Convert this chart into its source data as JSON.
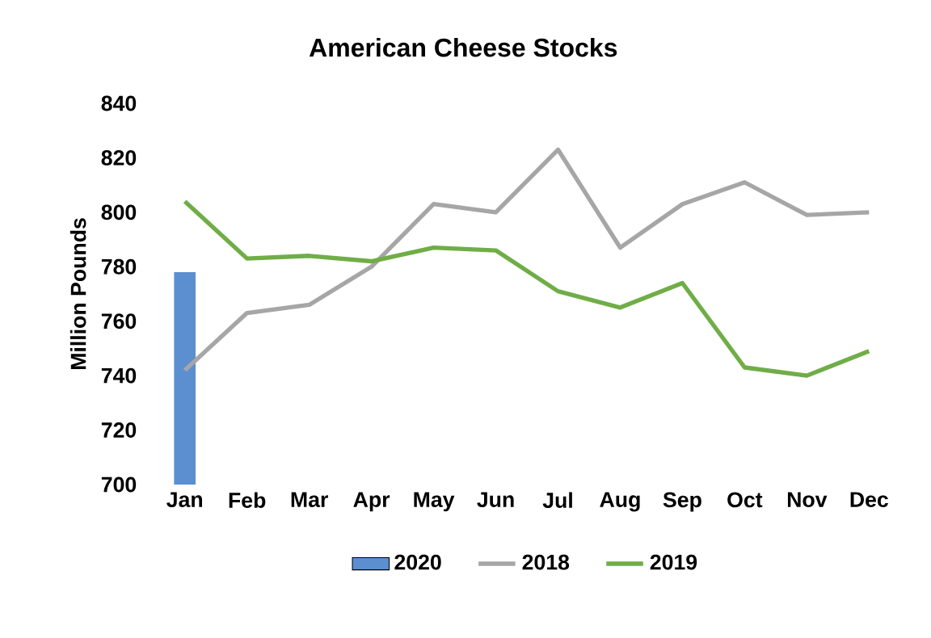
{
  "chart_data": {
    "type": "line",
    "title": "American Cheese Stocks",
    "ylabel": "Million Pounds",
    "categories": [
      "Jan",
      "Feb",
      "Mar",
      "Apr",
      "May",
      "Jun",
      "Jul",
      "Aug",
      "Sep",
      "Oct",
      "Nov",
      "Dec"
    ],
    "series": [
      {
        "name": "2020",
        "type": "bar",
        "color": "#5b8fd0",
        "values": [
          778,
          null,
          null,
          null,
          null,
          null,
          null,
          null,
          null,
          null,
          null,
          null
        ]
      },
      {
        "name": "2018",
        "color": "#a6a6a6",
        "values": [
          742,
          763,
          766,
          780,
          803,
          800,
          823,
          787,
          803,
          811,
          799,
          800
        ]
      },
      {
        "name": "2019",
        "color": "#70ad47",
        "values": [
          804,
          783,
          784,
          782,
          787,
          786,
          771,
          765,
          774,
          743,
          740,
          749
        ]
      }
    ],
    "ylim": [
      700,
      840
    ],
    "yticks": [
      700,
      720,
      740,
      760,
      780,
      800,
      820,
      840
    ],
    "legend": "bottom"
  }
}
